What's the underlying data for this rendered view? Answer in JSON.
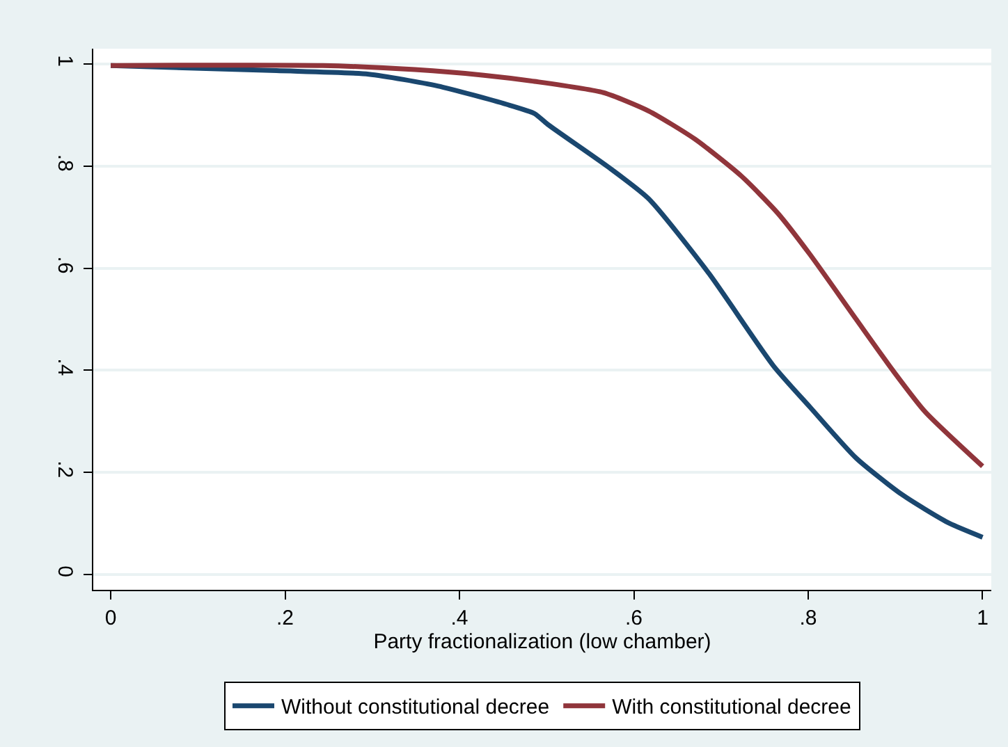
{
  "chart_data": {
    "type": "line",
    "xlabel": "Party fractionalization (low chamber)",
    "xlim": [
      -0.02,
      1.01
    ],
    "ylim": [
      -0.03,
      1.03
    ],
    "xticks": [
      0,
      {
        "value": 0.2,
        "label": ".2"
      },
      {
        "value": 0.4,
        "label": ".4"
      },
      {
        "value": 0.6,
        "label": ".6"
      },
      {
        "value": 0.8,
        "label": ".8"
      },
      1
    ],
    "yticks": [
      0,
      {
        "value": 0.2,
        "label": ".2"
      },
      {
        "value": 0.4,
        "label": ".4"
      },
      {
        "value": 0.6,
        "label": ".6"
      },
      {
        "value": 0.8,
        "label": ".8"
      },
      1
    ],
    "grid": "y",
    "legend": "bottom",
    "marker": "none",
    "line_style": "solid",
    "series": [
      {
        "name": "Without constitutional decree",
        "color": "#1a476f",
        "x": [
          0,
          0.19,
          0.296,
          0.375,
          0.454,
          0.486,
          0.501,
          0.57,
          0.617,
          0.686,
          0.76,
          0.802,
          0.855,
          0.908,
          0.96,
          1.0
        ],
        "values": [
          0.997,
          0.987,
          0.98,
          0.957,
          0.921,
          0.903,
          0.882,
          0.799,
          0.736,
          0.59,
          0.409,
          0.328,
          0.228,
          0.156,
          0.102,
          0.073
        ]
      },
      {
        "name": "With constitutional decree",
        "color": "#90353b",
        "x": [
          0,
          0.243,
          0.349,
          0.428,
          0.486,
          0.565,
          0.617,
          0.67,
          0.723,
          0.765,
          0.802,
          0.855,
          0.897,
          0.934,
          1.0
        ],
        "values": [
          0.997,
          0.997,
          0.989,
          0.978,
          0.966,
          0.944,
          0.908,
          0.853,
          0.781,
          0.708,
          0.627,
          0.5,
          0.4,
          0.319,
          0.212
        ]
      }
    ]
  }
}
